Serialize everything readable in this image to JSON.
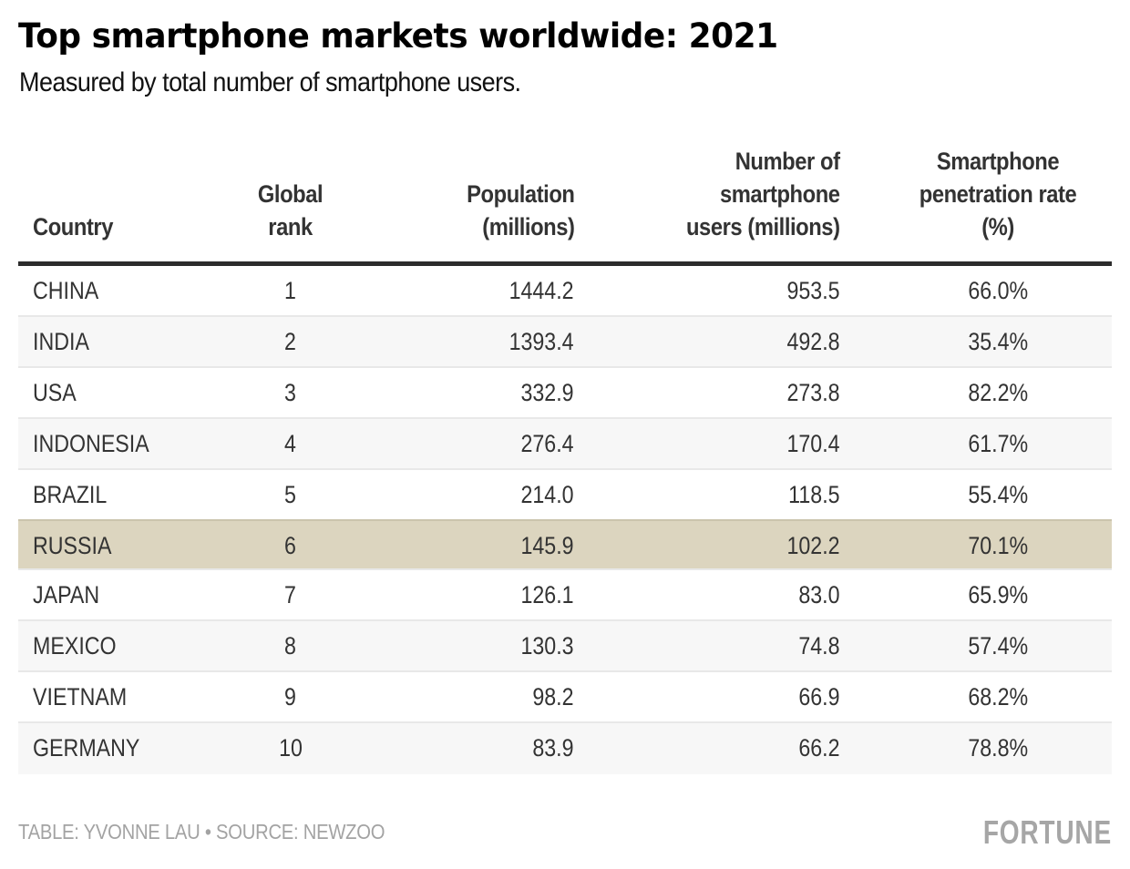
{
  "header": {
    "title": "Top smartphone markets worldwide: 2021",
    "subtitle": "Measured by total number of smartphone users."
  },
  "table": {
    "columns": [
      {
        "key": "country",
        "label_lines": [
          "Country"
        ]
      },
      {
        "key": "rank",
        "label_lines": [
          "Global",
          "rank"
        ]
      },
      {
        "key": "population",
        "label_lines": [
          "Population",
          "(millions)"
        ]
      },
      {
        "key": "users",
        "label_lines": [
          "Number of",
          "smartphone",
          "users (millions)"
        ]
      },
      {
        "key": "rate",
        "label_lines": [
          "Smartphone",
          "penetration rate",
          "(%)"
        ]
      }
    ],
    "highlight_color": "#dcd5bf",
    "highlighted_country": "RUSSIA"
  },
  "chart_data": {
    "type": "table",
    "title": "Top smartphone markets worldwide: 2021",
    "subtitle": "Measured by total number of smartphone users.",
    "columns": [
      "Country",
      "Global rank",
      "Population (millions)",
      "Number of smartphone users (millions)",
      "Smartphone penetration rate (%)"
    ],
    "rows": [
      {
        "country": "CHINA",
        "rank": "1",
        "population": "1444.2",
        "users": "953.5",
        "rate": "66.0%"
      },
      {
        "country": "INDIA",
        "rank": "2",
        "population": "1393.4",
        "users": "492.8",
        "rate": "35.4%"
      },
      {
        "country": "USA",
        "rank": "3",
        "population": "332.9",
        "users": "273.8",
        "rate": "82.2%"
      },
      {
        "country": "INDONESIA",
        "rank": "4",
        "population": "276.4",
        "users": "170.4",
        "rate": "61.7%"
      },
      {
        "country": "BRAZIL",
        "rank": "5",
        "population": "214.0",
        "users": "118.5",
        "rate": "55.4%"
      },
      {
        "country": "RUSSIA",
        "rank": "6",
        "population": "145.9",
        "users": "102.2",
        "rate": "70.1%",
        "highlighted": true
      },
      {
        "country": "JAPAN",
        "rank": "7",
        "population": "126.1",
        "users": "83.0",
        "rate": "65.9%"
      },
      {
        "country": "MEXICO",
        "rank": "8",
        "population": "130.3",
        "users": "74.8",
        "rate": "57.4%"
      },
      {
        "country": "VIETNAM",
        "rank": "9",
        "population": "98.2",
        "users": "66.9",
        "rate": "68.2%"
      },
      {
        "country": "GERMANY",
        "rank": "10",
        "population": "83.9",
        "users": "66.2",
        "rate": "78.8%"
      }
    ]
  },
  "footer": {
    "credit": "TABLE: YVONNE LAU • SOURCE: NEWZOO",
    "logo": "FORTUNE"
  }
}
